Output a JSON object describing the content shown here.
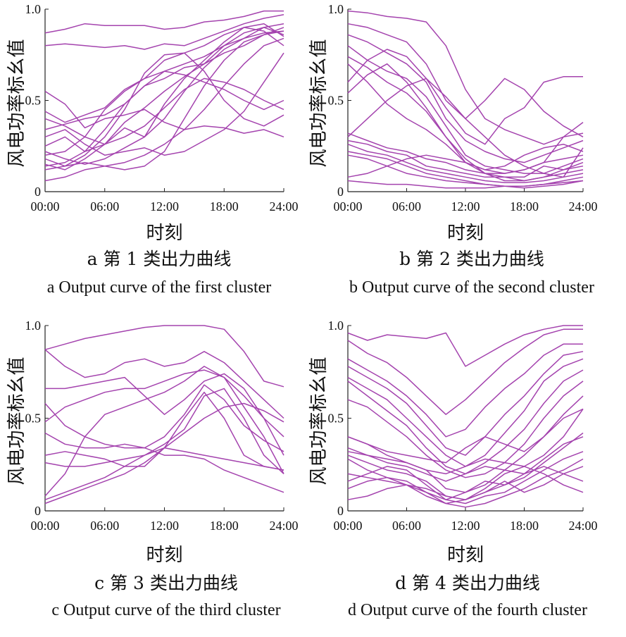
{
  "curve_color": "#A443AE",
  "chart_data": [
    {
      "type": "line",
      "caption_cn": "a  第 1 类出力曲线",
      "caption_en": "a  Output curve of the first cluster",
      "xlabel": "时刻",
      "ylabel": "风电功率标幺值",
      "x_ticks": [
        "00:00",
        "06:00",
        "12:00",
        "18:00",
        "24:00"
      ],
      "y_ticks": [
        "1.0",
        "0.5",
        "0"
      ],
      "xlim": [
        0,
        24
      ],
      "ylim": [
        0,
        1
      ],
      "x": [
        0,
        2,
        4,
        6,
        8,
        10,
        12,
        14,
        16,
        18,
        20,
        22,
        24
      ],
      "series": [
        {
          "values": [
            0.87,
            0.89,
            0.92,
            0.91,
            0.91,
            0.91,
            0.89,
            0.9,
            0.93,
            0.94,
            0.96,
            0.99,
            0.99
          ]
        },
        {
          "values": [
            0.8,
            0.81,
            0.8,
            0.79,
            0.8,
            0.78,
            0.81,
            0.8,
            0.84,
            0.88,
            0.92,
            0.95,
            0.97
          ]
        },
        {
          "values": [
            0.55,
            0.48,
            0.35,
            0.4,
            0.42,
            0.45,
            0.38,
            0.34,
            0.36,
            0.35,
            0.32,
            0.34,
            0.3
          ]
        },
        {
          "values": [
            0.2,
            0.22,
            0.3,
            0.45,
            0.55,
            0.62,
            0.66,
            0.64,
            0.6,
            0.56,
            0.5,
            0.45,
            0.5
          ]
        },
        {
          "values": [
            0.34,
            0.37,
            0.4,
            0.42,
            0.48,
            0.58,
            0.66,
            0.7,
            0.74,
            0.8,
            0.84,
            0.87,
            0.88
          ]
        },
        {
          "values": [
            0.18,
            0.14,
            0.2,
            0.3,
            0.45,
            0.65,
            0.75,
            0.76,
            0.8,
            0.86,
            0.9,
            0.92,
            0.85
          ]
        },
        {
          "values": [
            0.22,
            0.18,
            0.15,
            0.18,
            0.24,
            0.3,
            0.48,
            0.62,
            0.72,
            0.82,
            0.9,
            0.88,
            0.8
          ]
        },
        {
          "values": [
            0.15,
            0.12,
            0.18,
            0.26,
            0.38,
            0.46,
            0.55,
            0.63,
            0.7,
            0.8,
            0.87,
            0.9,
            0.86
          ]
        },
        {
          "values": [
            0.25,
            0.3,
            0.22,
            0.26,
            0.35,
            0.3,
            0.4,
            0.55,
            0.68,
            0.78,
            0.84,
            0.9,
            0.92
          ]
        },
        {
          "values": [
            0.12,
            0.14,
            0.16,
            0.14,
            0.12,
            0.14,
            0.22,
            0.4,
            0.58,
            0.72,
            0.82,
            0.86,
            0.88
          ]
        },
        {
          "values": [
            0.06,
            0.08,
            0.12,
            0.14,
            0.16,
            0.2,
            0.26,
            0.34,
            0.45,
            0.58,
            0.7,
            0.8,
            0.84
          ]
        },
        {
          "values": [
            0.3,
            0.34,
            0.26,
            0.2,
            0.22,
            0.24,
            0.2,
            0.22,
            0.28,
            0.34,
            0.44,
            0.6,
            0.76
          ]
        },
        {
          "values": [
            0.44,
            0.38,
            0.42,
            0.46,
            0.56,
            0.62,
            0.72,
            0.76,
            0.66,
            0.5,
            0.4,
            0.36,
            0.42
          ]
        },
        {
          "values": [
            0.14,
            0.16,
            0.22,
            0.34,
            0.48,
            0.58,
            0.62,
            0.68,
            0.7,
            0.76,
            0.8,
            0.86,
            0.9
          ]
        },
        {
          "values": [
            0.4,
            0.36,
            0.3,
            0.26,
            0.3,
            0.36,
            0.46,
            0.56,
            0.62,
            0.6,
            0.56,
            0.5,
            0.45
          ]
        }
      ]
    },
    {
      "type": "line",
      "caption_cn": "b  第 2 类出力曲线",
      "caption_en": "b  Output curve of the second cluster",
      "xlabel": "时刻",
      "ylabel": "风电功率标幺值",
      "x_ticks": [
        "00:00",
        "06:00",
        "12:00",
        "18:00",
        "24:00"
      ],
      "y_ticks": [
        "1.0",
        "0.5",
        "0"
      ],
      "xlim": [
        0,
        24
      ],
      "ylim": [
        0,
        1
      ],
      "x": [
        0,
        2,
        4,
        6,
        8,
        10,
        12,
        14,
        16,
        18,
        20,
        22,
        24
      ],
      "series": [
        {
          "values": [
            0.99,
            0.98,
            0.96,
            0.95,
            0.93,
            0.8,
            0.56,
            0.4,
            0.34,
            0.3,
            0.26,
            0.3,
            0.32
          ]
        },
        {
          "values": [
            0.92,
            0.9,
            0.86,
            0.82,
            0.7,
            0.5,
            0.4,
            0.5,
            0.62,
            0.56,
            0.44,
            0.36,
            0.3
          ]
        },
        {
          "values": [
            0.86,
            0.82,
            0.76,
            0.7,
            0.6,
            0.4,
            0.28,
            0.22,
            0.18,
            0.16,
            0.2,
            0.24,
            0.28
          ]
        },
        {
          "values": [
            0.8,
            0.72,
            0.66,
            0.62,
            0.52,
            0.36,
            0.2,
            0.14,
            0.12,
            0.1,
            0.1,
            0.14,
            0.18
          ]
        },
        {
          "values": [
            0.74,
            0.68,
            0.6,
            0.54,
            0.44,
            0.3,
            0.18,
            0.1,
            0.08,
            0.08,
            0.14,
            0.12,
            0.16
          ]
        },
        {
          "values": [
            0.6,
            0.72,
            0.78,
            0.74,
            0.62,
            0.46,
            0.32,
            0.26,
            0.4,
            0.46,
            0.6,
            0.63,
            0.63
          ]
        },
        {
          "values": [
            0.54,
            0.64,
            0.7,
            0.6,
            0.46,
            0.3,
            0.16,
            0.1,
            0.06,
            0.06,
            0.08,
            0.1,
            0.12
          ]
        },
        {
          "values": [
            0.32,
            0.28,
            0.24,
            0.22,
            0.18,
            0.16,
            0.12,
            0.1,
            0.1,
            0.12,
            0.16,
            0.18,
            0.2
          ]
        },
        {
          "values": [
            0.28,
            0.26,
            0.22,
            0.2,
            0.14,
            0.12,
            0.1,
            0.08,
            0.08,
            0.06,
            0.08,
            0.12,
            0.14
          ]
        },
        {
          "values": [
            0.26,
            0.22,
            0.2,
            0.16,
            0.12,
            0.1,
            0.08,
            0.06,
            0.05,
            0.05,
            0.06,
            0.08,
            0.1
          ]
        },
        {
          "values": [
            0.22,
            0.2,
            0.18,
            0.14,
            0.1,
            0.08,
            0.06,
            0.04,
            0.03,
            0.03,
            0.04,
            0.06,
            0.08
          ]
        },
        {
          "values": [
            0.2,
            0.18,
            0.14,
            0.1,
            0.08,
            0.06,
            0.05,
            0.04,
            0.03,
            0.02,
            0.03,
            0.04,
            0.06
          ]
        },
        {
          "values": [
            0.08,
            0.1,
            0.14,
            0.18,
            0.2,
            0.18,
            0.16,
            0.12,
            0.14,
            0.2,
            0.24,
            0.26,
            0.22
          ]
        },
        {
          "values": [
            0.06,
            0.05,
            0.04,
            0.04,
            0.03,
            0.02,
            0.02,
            0.02,
            0.03,
            0.03,
            0.04,
            0.05,
            0.06
          ]
        },
        {
          "values": [
            0.3,
            0.4,
            0.5,
            0.58,
            0.62,
            0.52,
            0.4,
            0.3,
            0.2,
            0.14,
            0.1,
            0.08,
            0.24
          ]
        },
        {
          "values": [
            0.7,
            0.6,
            0.48,
            0.4,
            0.34,
            0.26,
            0.16,
            0.12,
            0.1,
            0.12,
            0.16,
            0.3,
            0.38
          ]
        }
      ]
    },
    {
      "type": "line",
      "caption_cn": "c  第 3 类出力曲线",
      "caption_en": "c  Output curve of the third cluster",
      "xlabel": "时刻",
      "ylabel": "风电功率标幺值",
      "x_ticks": [
        "00:00",
        "06:00",
        "12:00",
        "18:00",
        "24:00"
      ],
      "y_ticks": [
        "1.0",
        "0.5",
        "0"
      ],
      "xlim": [
        0,
        24
      ],
      "ylim": [
        0,
        1
      ],
      "x": [
        0,
        2,
        4,
        6,
        8,
        10,
        12,
        14,
        16,
        18,
        20,
        22,
        24
      ],
      "series": [
        {
          "values": [
            0.87,
            0.9,
            0.93,
            0.95,
            0.97,
            0.99,
            1.0,
            1.0,
            1.0,
            0.98,
            0.86,
            0.7,
            0.67
          ]
        },
        {
          "values": [
            0.87,
            0.78,
            0.72,
            0.74,
            0.8,
            0.82,
            0.78,
            0.8,
            0.86,
            0.8,
            0.7,
            0.6,
            0.5
          ]
        },
        {
          "values": [
            0.66,
            0.66,
            0.68,
            0.7,
            0.72,
            0.62,
            0.52,
            0.6,
            0.7,
            0.74,
            0.66,
            0.5,
            0.4
          ]
        },
        {
          "values": [
            0.48,
            0.56,
            0.6,
            0.64,
            0.66,
            0.66,
            0.7,
            0.74,
            0.76,
            0.72,
            0.62,
            0.5,
            0.3
          ]
        },
        {
          "values": [
            0.42,
            0.36,
            0.34,
            0.34,
            0.36,
            0.34,
            0.4,
            0.52,
            0.68,
            0.6,
            0.46,
            0.38,
            0.32
          ]
        },
        {
          "values": [
            0.3,
            0.32,
            0.3,
            0.28,
            0.24,
            0.24,
            0.34,
            0.5,
            0.64,
            0.5,
            0.3,
            0.24,
            0.22
          ]
        },
        {
          "values": [
            0.26,
            0.24,
            0.24,
            0.26,
            0.28,
            0.3,
            0.34,
            0.32,
            0.3,
            0.28,
            0.26,
            0.24,
            0.22
          ]
        },
        {
          "values": [
            0.06,
            0.1,
            0.14,
            0.18,
            0.24,
            0.3,
            0.36,
            0.44,
            0.62,
            0.66,
            0.5,
            0.3,
            0.2
          ]
        },
        {
          "values": [
            0.08,
            0.2,
            0.4,
            0.52,
            0.56,
            0.6,
            0.64,
            0.7,
            0.78,
            0.72,
            0.56,
            0.4,
            0.2
          ]
        },
        {
          "values": [
            0.58,
            0.46,
            0.4,
            0.36,
            0.34,
            0.34,
            0.3,
            0.3,
            0.28,
            0.22,
            0.18,
            0.14,
            0.1
          ]
        },
        {
          "values": [
            0.04,
            0.08,
            0.12,
            0.16,
            0.2,
            0.26,
            0.34,
            0.42,
            0.5,
            0.56,
            0.58,
            0.54,
            0.48
          ]
        }
      ]
    },
    {
      "type": "line",
      "caption_cn": "d  第 4 类出力曲线",
      "caption_en": "d  Output curve of the fourth cluster",
      "xlabel": "时刻",
      "ylabel": "风电功率标幺值",
      "x_ticks": [
        "00:00",
        "06:00",
        "12:00",
        "18:00",
        "24:00"
      ],
      "y_ticks": [
        "1.0",
        "0.5",
        "0"
      ],
      "xlim": [
        0,
        24
      ],
      "ylim": [
        0,
        1
      ],
      "x": [
        0,
        2,
        4,
        6,
        8,
        10,
        12,
        14,
        16,
        18,
        20,
        22,
        24
      ],
      "series": [
        {
          "values": [
            0.96,
            0.92,
            0.95,
            0.94,
            0.93,
            0.96,
            0.78,
            0.84,
            0.9,
            0.95,
            0.98,
            1.0,
            1.0
          ]
        },
        {
          "values": [
            0.92,
            0.85,
            0.8,
            0.72,
            0.62,
            0.52,
            0.6,
            0.7,
            0.8,
            0.88,
            0.95,
            0.98,
            0.98
          ]
        },
        {
          "values": [
            0.82,
            0.76,
            0.7,
            0.62,
            0.52,
            0.4,
            0.44,
            0.56,
            0.66,
            0.74,
            0.84,
            0.9,
            0.9
          ]
        },
        {
          "values": [
            0.78,
            0.72,
            0.66,
            0.58,
            0.46,
            0.34,
            0.3,
            0.4,
            0.52,
            0.62,
            0.74,
            0.84,
            0.86
          ]
        },
        {
          "values": [
            0.72,
            0.66,
            0.6,
            0.5,
            0.4,
            0.3,
            0.24,
            0.3,
            0.42,
            0.54,
            0.7,
            0.78,
            0.82
          ]
        },
        {
          "values": [
            0.7,
            0.62,
            0.54,
            0.46,
            0.34,
            0.24,
            0.2,
            0.26,
            0.34,
            0.44,
            0.58,
            0.7,
            0.76
          ]
        },
        {
          "values": [
            0.6,
            0.56,
            0.48,
            0.4,
            0.3,
            0.22,
            0.18,
            0.2,
            0.26,
            0.36,
            0.5,
            0.62,
            0.7
          ]
        },
        {
          "values": [
            0.4,
            0.36,
            0.32,
            0.3,
            0.28,
            0.26,
            0.34,
            0.4,
            0.36,
            0.32,
            0.4,
            0.5,
            0.55
          ]
        },
        {
          "values": [
            0.32,
            0.3,
            0.28,
            0.26,
            0.22,
            0.12,
            0.1,
            0.14,
            0.22,
            0.3,
            0.4,
            0.52,
            0.62
          ]
        },
        {
          "values": [
            0.3,
            0.26,
            0.22,
            0.2,
            0.16,
            0.08,
            0.06,
            0.12,
            0.2,
            0.24,
            0.3,
            0.4,
            0.55
          ]
        },
        {
          "values": [
            0.28,
            0.22,
            0.18,
            0.14,
            0.1,
            0.06,
            0.1,
            0.16,
            0.14,
            0.18,
            0.26,
            0.34,
            0.42
          ]
        },
        {
          "values": [
            0.2,
            0.18,
            0.16,
            0.14,
            0.08,
            0.04,
            0.06,
            0.1,
            0.14,
            0.2,
            0.28,
            0.36,
            0.4
          ]
        },
        {
          "values": [
            0.16,
            0.2,
            0.24,
            0.22,
            0.14,
            0.06,
            0.04,
            0.08,
            0.1,
            0.16,
            0.22,
            0.28,
            0.32
          ]
        },
        {
          "values": [
            0.12,
            0.16,
            0.18,
            0.16,
            0.1,
            0.04,
            0.02,
            0.04,
            0.08,
            0.12,
            0.18,
            0.22,
            0.28
          ]
        },
        {
          "values": [
            0.06,
            0.08,
            0.12,
            0.14,
            0.12,
            0.08,
            0.06,
            0.1,
            0.16,
            0.1,
            0.14,
            0.2,
            0.24
          ]
        },
        {
          "values": [
            0.34,
            0.3,
            0.26,
            0.24,
            0.2,
            0.16,
            0.2,
            0.24,
            0.22,
            0.2,
            0.24,
            0.2,
            0.16
          ]
        },
        {
          "values": [
            0.4,
            0.36,
            0.3,
            0.26,
            0.22,
            0.2,
            0.24,
            0.28,
            0.26,
            0.24,
            0.2,
            0.14,
            0.1
          ]
        }
      ]
    }
  ]
}
